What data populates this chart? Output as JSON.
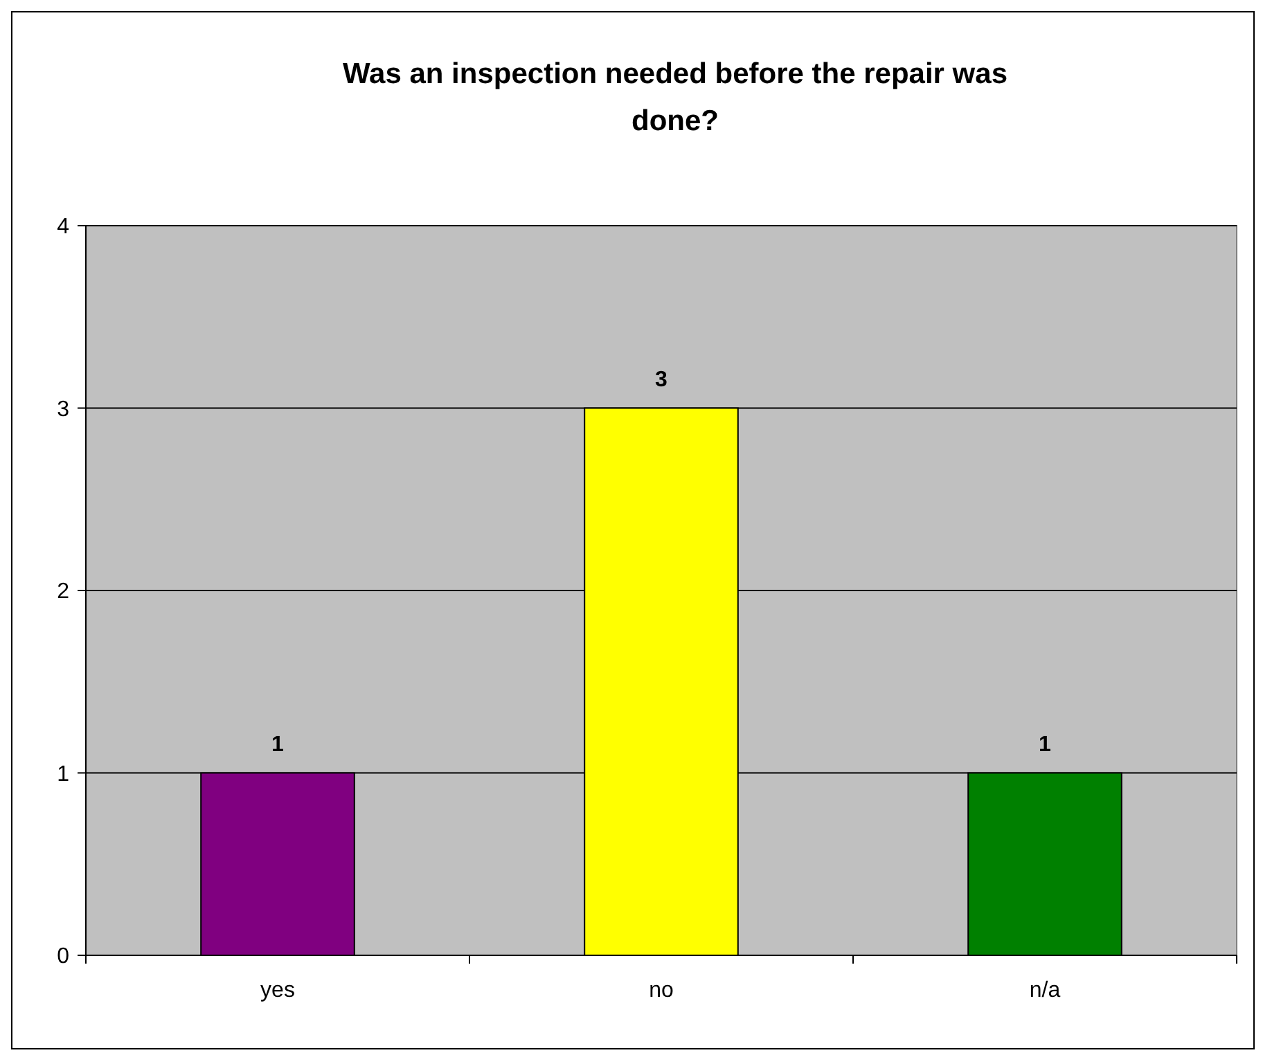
{
  "chart_data": {
    "type": "bar",
    "title": "Was an inspection needed before the repair was done?",
    "categories": [
      "yes",
      "no",
      "n/a"
    ],
    "values": [
      1,
      3,
      1
    ],
    "colors": [
      "#800080",
      "#ffff00",
      "#008000"
    ],
    "ylim": [
      0,
      4
    ],
    "yticks": [
      0,
      1,
      2,
      3,
      4
    ],
    "grid": "y",
    "data_labels": true
  }
}
